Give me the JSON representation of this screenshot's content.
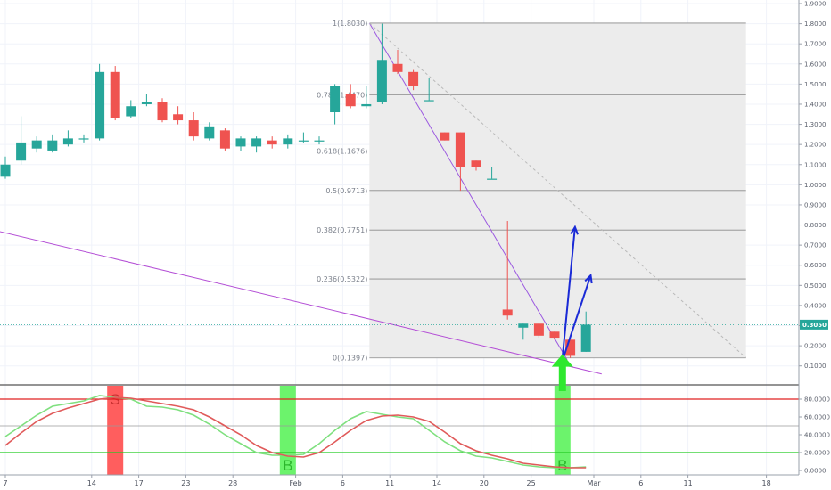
{
  "chart_data": [
    {
      "type": "candlestick",
      "title": "",
      "ylim": [
        0.05,
        1.9
      ],
      "y_scale": "linear",
      "y_ticks": [
        "0.1000",
        "0.2000",
        "0.3000",
        "0.4000",
        "0.5000",
        "0.6000",
        "0.7000",
        "0.8000",
        "0.9000",
        "1.0000",
        "1.1000",
        "1.2000",
        "1.3000",
        "1.4000",
        "1.5000",
        "1.6000",
        "1.7000",
        "1.8000",
        "1.9000"
      ],
      "current_price": "0.3050",
      "colors": {
        "up": "#26a69a",
        "down": "#ef5350",
        "fib_zone": "#ececec",
        "current_price_line": "#26a69a",
        "trendline": "#b44fd6",
        "arrows": "#1a2ad6",
        "signal_arrow": "#2ee82e"
      },
      "candles": [
        {
          "o": 1.04,
          "h": 1.14,
          "l": 1.03,
          "c": 1.1
        },
        {
          "o": 1.12,
          "h": 1.34,
          "l": 1.1,
          "c": 1.21
        },
        {
          "o": 1.18,
          "h": 1.24,
          "l": 1.16,
          "c": 1.22
        },
        {
          "o": 1.17,
          "h": 1.25,
          "l": 1.16,
          "c": 1.22
        },
        {
          "o": 1.2,
          "h": 1.27,
          "l": 1.19,
          "c": 1.23
        },
        {
          "o": 1.23,
          "h": 1.25,
          "l": 1.21,
          "c": 1.23
        },
        {
          "o": 1.23,
          "h": 1.6,
          "l": 1.22,
          "c": 1.56
        },
        {
          "o": 1.56,
          "h": 1.59,
          "l": 1.32,
          "c": 1.33
        },
        {
          "o": 1.34,
          "h": 1.42,
          "l": 1.33,
          "c": 1.39
        },
        {
          "o": 1.4,
          "h": 1.45,
          "l": 1.39,
          "c": 1.41
        },
        {
          "o": 1.41,
          "h": 1.43,
          "l": 1.31,
          "c": 1.32
        },
        {
          "o": 1.35,
          "h": 1.39,
          "l": 1.3,
          "c": 1.32
        },
        {
          "o": 1.32,
          "h": 1.36,
          "l": 1.22,
          "c": 1.24
        },
        {
          "o": 1.23,
          "h": 1.31,
          "l": 1.22,
          "c": 1.29
        },
        {
          "o": 1.27,
          "h": 1.28,
          "l": 1.17,
          "c": 1.18
        },
        {
          "o": 1.19,
          "h": 1.24,
          "l": 1.17,
          "c": 1.23
        },
        {
          "o": 1.19,
          "h": 1.24,
          "l": 1.16,
          "c": 1.23
        },
        {
          "o": 1.22,
          "h": 1.24,
          "l": 1.18,
          "c": 1.2
        },
        {
          "o": 1.2,
          "h": 1.25,
          "l": 1.18,
          "c": 1.23
        },
        {
          "o": 1.22,
          "h": 1.26,
          "l": 1.21,
          "c": 1.22
        },
        {
          "o": 1.22,
          "h": 1.24,
          "l": 1.2,
          "c": 1.22
        },
        {
          "o": 1.36,
          "h": 1.5,
          "l": 1.3,
          "c": 1.49
        },
        {
          "o": 1.45,
          "h": 1.5,
          "l": 1.38,
          "c": 1.39
        },
        {
          "o": 1.39,
          "h": 1.49,
          "l": 1.38,
          "c": 1.4
        },
        {
          "o": 1.41,
          "h": 1.8,
          "l": 1.4,
          "c": 1.62
        },
        {
          "o": 1.6,
          "h": 1.67,
          "l": 1.55,
          "c": 1.56
        },
        {
          "o": 1.56,
          "h": 1.57,
          "l": 1.47,
          "c": 1.49
        },
        {
          "o": 1.42,
          "h": 1.53,
          "l": 1.42,
          "c": 1.42
        },
        {
          "o": 1.26,
          "h": 1.26,
          "l": 1.22,
          "c": 1.22
        },
        {
          "o": 1.26,
          "h": 1.26,
          "l": 0.97,
          "c": 1.09
        },
        {
          "o": 1.12,
          "h": 1.12,
          "l": 1.07,
          "c": 1.09
        },
        {
          "o": 1.03,
          "h": 1.09,
          "l": 1.03,
          "c": 1.03
        },
        {
          "o": 0.38,
          "h": 0.82,
          "l": 0.33,
          "c": 0.35
        },
        {
          "o": 0.29,
          "h": 0.31,
          "l": 0.23,
          "c": 0.31
        },
        {
          "o": 0.31,
          "h": 0.31,
          "l": 0.24,
          "c": 0.25
        },
        {
          "o": 0.27,
          "h": 0.27,
          "l": 0.23,
          "c": 0.24
        },
        {
          "o": 0.23,
          "h": 0.23,
          "l": 0.14,
          "c": 0.15
        },
        {
          "o": 0.17,
          "h": 0.37,
          "l": 0.17,
          "c": 0.305
        }
      ],
      "x_axis": {
        "ticks": [
          {
            "label": "7",
            "bar": 0
          },
          {
            "label": "14",
            "bar": 5.5
          },
          {
            "label": "17",
            "bar": 8.5
          },
          {
            "label": "23",
            "bar": 11.5
          },
          {
            "label": "28",
            "bar": 14.5
          },
          {
            "label": "Feb",
            "bar": 18.5
          },
          {
            "label": "6",
            "bar": 21.5
          },
          {
            "label": "11",
            "bar": 24.5
          },
          {
            "label": "14",
            "bar": 27.5
          },
          {
            "label": "20",
            "bar": 30.5
          },
          {
            "label": "25",
            "bar": 33.5
          },
          {
            "label": "Mar",
            "bar": 37.5
          },
          {
            "label": "6",
            "bar": 40.5
          },
          {
            "label": "11",
            "bar": 43.5
          },
          {
            "label": "18",
            "bar": 48.5
          }
        ]
      },
      "fibonacci": {
        "start_bar": 23.2,
        "end_bar": 47.2,
        "levels": [
          {
            "label": "1(1.8030)",
            "price": 1.803
          },
          {
            "label": "0.786(1.4470)",
            "price": 1.447
          },
          {
            "label": "0.618(1.1676)",
            "price": 1.1676
          },
          {
            "label": "0.5(0.9713)",
            "price": 0.9713
          },
          {
            "label": "0.382(0.7751)",
            "price": 0.7751
          },
          {
            "label": "0.236(0.5322)",
            "price": 0.5322
          },
          {
            "label": "0(0.1397)",
            "price": 0.1397
          }
        ]
      },
      "lines": [
        {
          "name": "fib trend",
          "color": "#9b59e0",
          "from": {
            "bar": 23.2,
            "price": 1.803
          },
          "to": {
            "bar": 35.8,
            "price": 0.13
          },
          "dashed": false
        },
        {
          "name": "fib diagonal",
          "color": "#b9b9b9",
          "from": {
            "bar": 23.2,
            "price": 1.803
          },
          "to": {
            "bar": 47.2,
            "price": 0.14
          },
          "dashed": true
        },
        {
          "name": "long trendline",
          "color": "#b44fd6",
          "from": {
            "bar": -0.5,
            "price": 0.77
          },
          "to": {
            "bar": 38.0,
            "price": 0.06
          },
          "dashed": false
        }
      ],
      "arrows": [
        {
          "from": {
            "bar": 35.5,
            "price": 0.14
          },
          "to": {
            "bar": 36.3,
            "price": 0.79
          }
        },
        {
          "from": {
            "bar": 35.6,
            "price": 0.15
          },
          "to": {
            "bar": 37.3,
            "price": 0.55
          }
        }
      ]
    },
    {
      "type": "line",
      "title": "",
      "ylim": [
        -5,
        95
      ],
      "y_ticks": [
        "0.0000",
        "20.0000",
        "40.0000",
        "60.0000",
        "80.0000"
      ],
      "bands": {
        "overbought": 80,
        "middle": 50,
        "oversold": 20
      },
      "series": [
        {
          "color": "#7fe07f",
          "values": [
            38,
            50,
            62,
            72,
            75,
            78,
            84,
            82,
            80,
            72,
            71,
            68,
            62,
            52,
            40,
            30,
            20,
            17,
            17,
            18,
            30,
            45,
            58,
            66,
            63,
            60,
            58,
            45,
            32,
            22,
            16,
            14,
            10,
            6,
            4,
            3,
            3,
            4
          ]
        },
        {
          "color": "#e05a5a",
          "values": [
            28,
            42,
            55,
            64,
            70,
            75,
            80,
            82,
            81,
            78,
            75,
            72,
            68,
            60,
            50,
            40,
            28,
            20,
            16,
            15,
            20,
            32,
            45,
            56,
            61,
            62,
            60,
            55,
            43,
            30,
            22,
            17,
            13,
            8,
            6,
            4,
            3,
            3
          ]
        }
      ],
      "signals": [
        {
          "bar": 7,
          "label": "S",
          "kind": "sell"
        },
        {
          "bar": 18,
          "label": "B",
          "kind": "buy"
        },
        {
          "bar": 35.5,
          "label": "B",
          "kind": "buy"
        }
      ]
    }
  ]
}
